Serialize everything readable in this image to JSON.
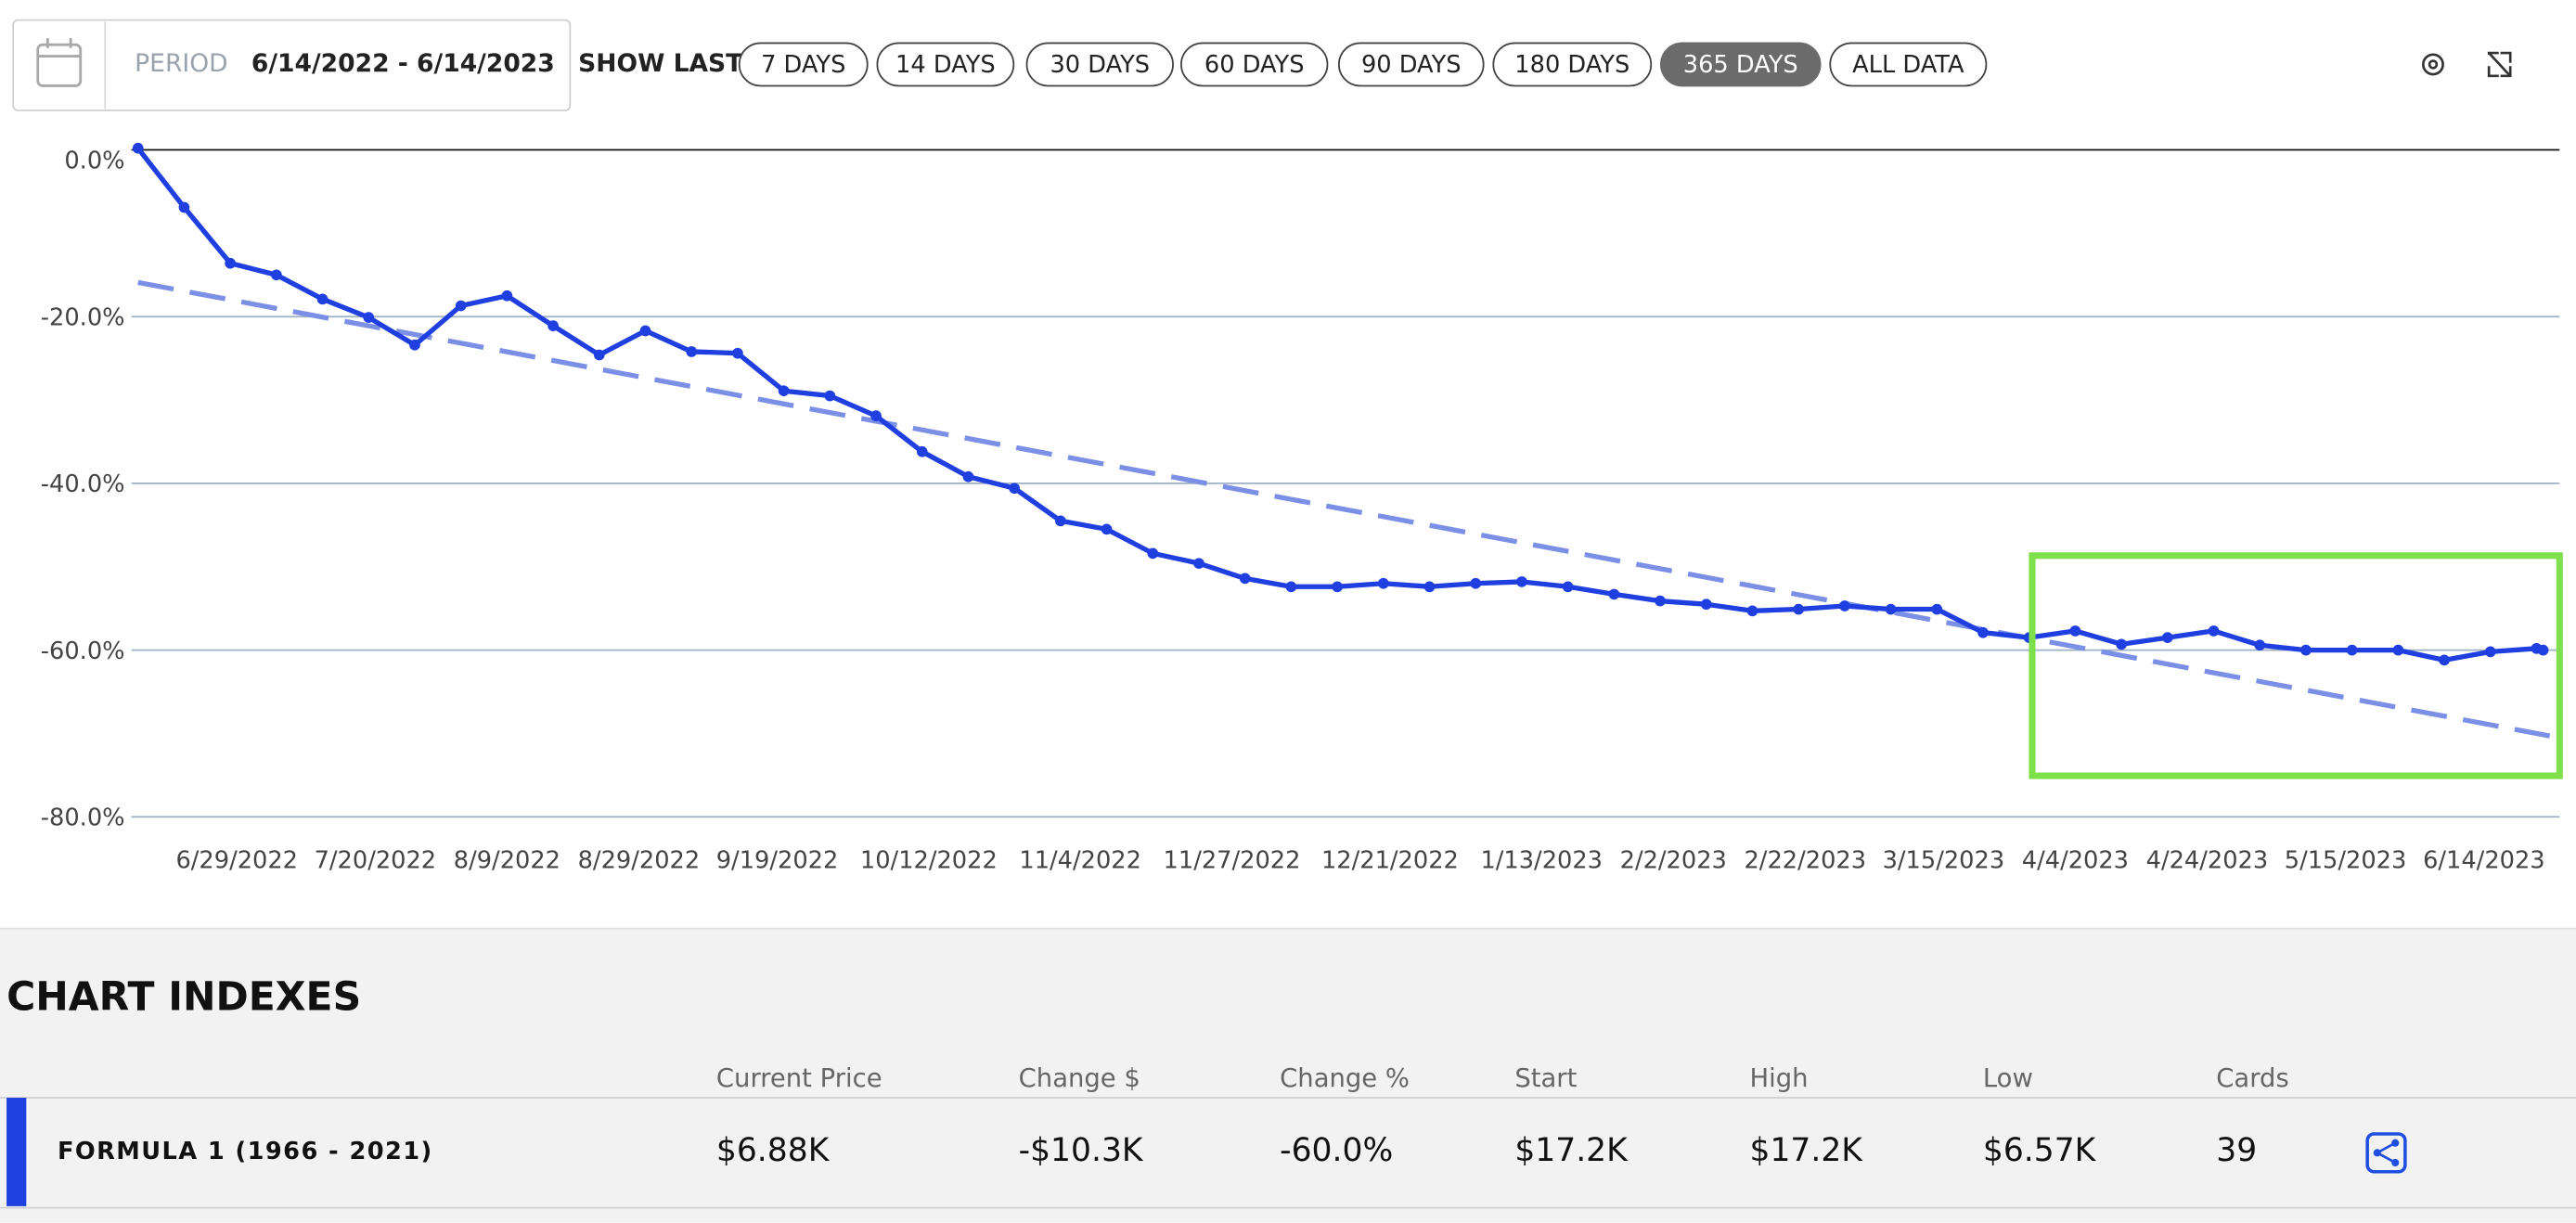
{
  "header": {
    "period_label": "PERIOD",
    "period": "6/14/2022 - 6/14/2023",
    "show_last_label": "SHOW LAST",
    "ranges": [
      "7 DAYS",
      "14 DAYS",
      "30 DAYS",
      "60 DAYS",
      "90 DAYS",
      "180 DAYS",
      "365 DAYS",
      "ALL DATA"
    ],
    "active_range": 6
  },
  "chart_data": {
    "type": "line",
    "x": [
      "2022-06-14",
      "2022-06-21",
      "2022-06-28",
      "2022-07-05",
      "2022-07-12",
      "2022-07-19",
      "2022-07-26",
      "2022-08-02",
      "2022-08-09",
      "2022-08-16",
      "2022-08-23",
      "2022-08-30",
      "2022-09-06",
      "2022-09-13",
      "2022-09-20",
      "2022-09-27",
      "2022-10-04",
      "2022-10-11",
      "2022-10-18",
      "2022-10-25",
      "2022-11-01",
      "2022-11-08",
      "2022-11-15",
      "2022-11-22",
      "2022-11-29",
      "2022-12-06",
      "2022-12-13",
      "2022-12-20",
      "2022-12-27",
      "2023-01-03",
      "2023-01-10",
      "2023-01-17",
      "2023-01-24",
      "2023-01-31",
      "2023-02-07",
      "2023-02-14",
      "2023-02-21",
      "2023-02-28",
      "2023-03-07",
      "2023-03-14",
      "2023-03-21",
      "2023-03-28",
      "2023-04-04",
      "2023-04-11",
      "2023-04-18",
      "2023-04-25",
      "2023-05-02",
      "2023-05-09",
      "2023-05-16",
      "2023-05-23",
      "2023-05-30",
      "2023-06-06",
      "2023-06-13",
      "2023-06-14"
    ],
    "series": [
      {
        "color": "#1f3fe0",
        "values": [
          0.2,
          -6.9,
          -13.6,
          -15.0,
          -17.9,
          -20.1,
          -23.4,
          -18.7,
          -17.5,
          -21.1,
          -24.6,
          -21.7,
          -24.2,
          -24.4,
          -28.9,
          -29.5,
          -31.9,
          -36.2,
          -39.2,
          -40.6,
          -44.5,
          -45.5,
          -48.4,
          -49.6,
          -51.4,
          -52.4,
          -52.4,
          -52.0,
          -52.4,
          -52.0,
          -51.8,
          -52.4,
          -53.3,
          -54.1,
          -54.5,
          -55.3,
          -55.1,
          -54.7,
          -55.1,
          -55.1,
          -57.9,
          -58.5,
          -57.7,
          -59.3,
          -58.5,
          -57.7,
          -59.4,
          -60.0,
          -60.0,
          -60.0,
          -61.2,
          -60.2,
          -59.8,
          -60.0
        ]
      }
    ],
    "trend": {
      "x": [
        "2022-06-14",
        "2023-06-15"
      ],
      "values": [
        -15.9,
        -70.3
      ],
      "color": "#7b8fe6",
      "dashed": true
    },
    "xlim": [
      "2022-06-13",
      "2023-06-15"
    ],
    "ylim": [
      -80,
      0
    ],
    "yticks": [
      {
        "value": 0,
        "label": "0.0%"
      },
      {
        "value": -20,
        "label": "-20.0%"
      },
      {
        "value": -40,
        "label": "-40.0%"
      },
      {
        "value": -60,
        "label": "-60.0%"
      },
      {
        "value": -80,
        "label": "-80.0%"
      }
    ],
    "xticks": [
      {
        "value": "2022-06-29",
        "label": "6/29/2022"
      },
      {
        "value": "2022-07-20",
        "label": "7/20/2022"
      },
      {
        "value": "2022-08-09",
        "label": "8/9/2022"
      },
      {
        "value": "2022-08-29",
        "label": "8/29/2022"
      },
      {
        "value": "2022-09-19",
        "label": "9/19/2022"
      },
      {
        "value": "2022-10-12",
        "label": "10/12/2022"
      },
      {
        "value": "2022-11-04",
        "label": "11/4/2022"
      },
      {
        "value": "2022-11-27",
        "label": "11/27/2022"
      },
      {
        "value": "2022-12-21",
        "label": "12/21/2022"
      },
      {
        "value": "2023-01-13",
        "label": "1/13/2023"
      },
      {
        "value": "2023-02-02",
        "label": "2/2/2023"
      },
      {
        "value": "2023-02-22",
        "label": "2/22/2023"
      },
      {
        "value": "2023-03-15",
        "label": "3/15/2023"
      },
      {
        "value": "2023-04-04",
        "label": "4/4/2023"
      },
      {
        "value": "2023-04-24",
        "label": "4/24/2023"
      },
      {
        "value": "2023-05-15",
        "label": "5/15/2023"
      },
      {
        "value": "2023-06-14",
        "label": "6/14/2023"
      }
    ],
    "grid": true
  },
  "indexes": {
    "title": "CHART INDEXES",
    "columns": [
      "Current Price",
      "Change $",
      "Change %",
      "Start",
      "High",
      "Low",
      "Cards"
    ],
    "rows": [
      [
        "FORMULA 1 (1966 - 2021)",
        "$6.88K",
        "-$10.3K",
        "-60.0%",
        "$17.2K",
        "$17.2K",
        "$6.57K",
        "39"
      ]
    ]
  }
}
